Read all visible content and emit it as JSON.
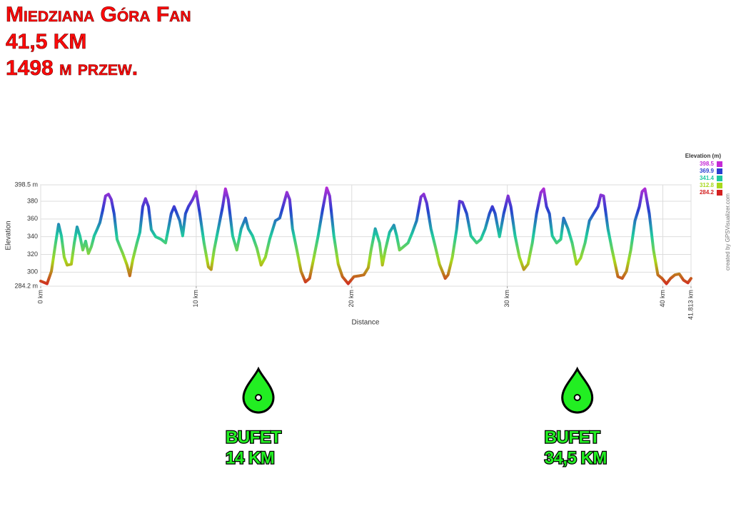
{
  "header": {
    "title": "Miedziana Góra Fan",
    "distance": "41,5 KM",
    "climb": "1498 m przew."
  },
  "chart_data": {
    "type": "line",
    "xlabel": "Distance",
    "ylabel": "Elevation",
    "credit": "created by GPSVisualizer.com",
    "xlim": [
      0,
      41.813
    ],
    "ylim": [
      284.2,
      398.5
    ],
    "xticks": [
      {
        "value": 0,
        "label": "0 km"
      },
      {
        "value": 10,
        "label": "10 km"
      },
      {
        "value": 20,
        "label": "20 km"
      },
      {
        "value": 30,
        "label": "30 km"
      },
      {
        "value": 40,
        "label": "40 km"
      },
      {
        "value": 41.813,
        "label": "41.813 km"
      }
    ],
    "yticks": [
      {
        "value": 284.2,
        "label": "284.2 m"
      },
      300,
      320,
      340,
      360,
      380,
      {
        "value": 398.5,
        "label": "398.5 m"
      }
    ],
    "grid": true,
    "legend": {
      "title": "Elevation (m)",
      "items": [
        {
          "value": 398.5,
          "color": "#c42ad6"
        },
        {
          "value": 369.9,
          "color": "#2a3fd0"
        },
        {
          "value": 341.4,
          "color": "#1ec8a0"
        },
        {
          "value": 312.8,
          "color": "#a8d81c"
        },
        {
          "value": 284.2,
          "color": "#d42020"
        }
      ]
    },
    "x": [
      0,
      0.41,
      0.69,
      0.96,
      1.15,
      1.33,
      1.51,
      1.7,
      1.97,
      2.16,
      2.34,
      2.52,
      2.71,
      2.89,
      3.07,
      3.26,
      3.44,
      3.62,
      3.81,
      3.99,
      4.17,
      4.36,
      4.54,
      4.72,
      4.91,
      5.09,
      5.28,
      5.55,
      5.73,
      5.92,
      6.19,
      6.38,
      6.56,
      6.74,
      6.93,
      7.11,
      7.39,
      7.75,
      8.03,
      8.21,
      8.39,
      8.58,
      8.76,
      8.94,
      9.13,
      9.31,
      9.5,
      9.77,
      10.0,
      10.23,
      10.5,
      10.78,
      10.96,
      11.15,
      11.42,
      11.7,
      11.88,
      12.06,
      12.34,
      12.61,
      12.89,
      13.17,
      13.35,
      13.62,
      13.9,
      14.17,
      14.45,
      14.72,
      15.09,
      15.37,
      15.64,
      15.83,
      16.01,
      16.19,
      16.47,
      16.74,
      17.02,
      17.29,
      17.57,
      17.84,
      18.12,
      18.39,
      18.58,
      18.85,
      19.13,
      19.4,
      19.77,
      20.14,
      20.5,
      20.78,
      21.06,
      21.24,
      21.51,
      21.79,
      21.97,
      22.16,
      22.43,
      22.71,
      22.89,
      23.07,
      23.35,
      23.62,
      23.9,
      24.17,
      24.45,
      24.63,
      24.82,
      25.09,
      25.37,
      25.64,
      26.01,
      26.19,
      26.47,
      26.74,
      26.93,
      27.11,
      27.39,
      27.66,
      28.03,
      28.3,
      28.58,
      28.85,
      29.04,
      29.22,
      29.5,
      29.77,
      30.05,
      30.23,
      30.5,
      30.78,
      31.06,
      31.33,
      31.61,
      31.88,
      32.16,
      32.34,
      32.52,
      32.71,
      32.89,
      33.17,
      33.44,
      33.62,
      33.9,
      34.17,
      34.45,
      34.72,
      35.0,
      35.28,
      35.55,
      35.83,
      36.01,
      36.19,
      36.47,
      36.74,
      37.11,
      37.39,
      37.66,
      37.94,
      38.21,
      38.49,
      38.67,
      38.85,
      39.13,
      39.4,
      39.68,
      39.95,
      40.23,
      40.5,
      40.78,
      41.06,
      41.33,
      41.61,
      41.813
    ],
    "values": [
      290,
      287,
      301,
      333,
      354,
      341,
      317,
      308,
      309,
      333,
      351,
      341,
      325,
      335,
      321,
      329,
      341,
      348,
      356,
      370,
      386,
      388,
      382,
      366,
      337,
      329,
      321,
      308,
      296,
      314,
      333,
      345,
      374,
      383,
      374,
      348,
      340,
      337,
      333,
      349,
      366,
      374,
      366,
      358,
      341,
      366,
      374,
      382,
      391,
      366,
      333,
      306,
      303,
      325,
      349,
      374,
      394,
      382,
      341,
      325,
      349,
      361,
      349,
      341,
      327,
      308,
      317,
      337,
      358,
      361,
      378,
      390,
      382,
      349,
      325,
      301,
      289,
      293,
      317,
      341,
      370,
      395,
      386,
      341,
      309,
      295,
      287,
      295,
      296,
      297,
      305,
      325,
      349,
      333,
      308,
      325,
      345,
      353,
      341,
      325,
      329,
      333,
      345,
      358,
      385,
      388,
      378,
      349,
      329,
      309,
      293,
      297,
      317,
      348,
      380,
      379,
      366,
      341,
      333,
      337,
      349,
      366,
      374,
      366,
      340,
      366,
      386,
      374,
      341,
      317,
      303,
      309,
      333,
      366,
      390,
      394,
      374,
      366,
      341,
      333,
      337,
      361,
      349,
      333,
      309,
      316,
      333,
      358,
      366,
      374,
      387,
      386,
      349,
      325,
      295,
      293,
      301,
      325,
      358,
      374,
      391,
      394,
      366,
      325,
      297,
      293,
      287,
      293,
      297,
      298,
      291,
      288,
      293
    ],
    "annotations": [
      {
        "x": 14,
        "label": "BUFET",
        "sublabel": "14 KM"
      },
      {
        "x": 34.5,
        "label": "BUFET",
        "sublabel": "34,5 KM"
      }
    ]
  }
}
